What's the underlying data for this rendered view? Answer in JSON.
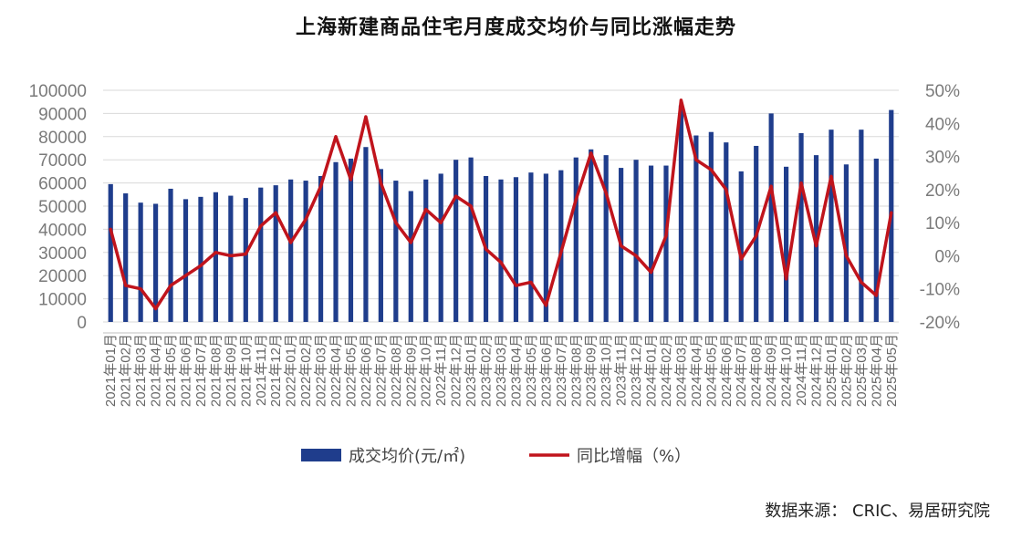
{
  "title": "上海新建商品住宅月度成交均价与同比涨幅走势",
  "source": "数据来源： CRIC、易居研究院",
  "chart_data": {
    "type": "bar",
    "categories": [
      "2021年01月",
      "2021年02月",
      "2021年03月",
      "2021年04月",
      "2021年05月",
      "2021年06月",
      "2021年07月",
      "2021年08月",
      "2021年09月",
      "2021年10月",
      "2021年11月",
      "2021年12月",
      "2022年01月",
      "2022年02月",
      "2022年03月",
      "2022年04月",
      "2022年05月",
      "2022年06月",
      "2022年07月",
      "2022年08月",
      "2022年09月",
      "2022年10月",
      "2022年11月",
      "2022年12月",
      "2023年01月",
      "2023年02月",
      "2023年03月",
      "2023年04月",
      "2023年05月",
      "2023年06月",
      "2023年07月",
      "2023年08月",
      "2023年09月",
      "2023年10月",
      "2023年11月",
      "2023年12月",
      "2024年01月",
      "2024年02月",
      "2024年03月",
      "2024年04月",
      "2024年05月",
      "2024年06月",
      "2024年07月",
      "2024年08月",
      "2024年09月",
      "2024年10月",
      "2024年11月",
      "2024年12月",
      "2025年01月",
      "2025年02月",
      "2025年03月",
      "2025年04月",
      "2025年05月"
    ],
    "series": [
      {
        "name": "成交均价(元/㎡)",
        "type": "bar",
        "axis": "left",
        "color": "#1f3d8c",
        "values": [
          59500,
          55500,
          51500,
          51000,
          57500,
          53000,
          54000,
          56000,
          54500,
          53500,
          58000,
          59000,
          61500,
          61000,
          63000,
          69000,
          70500,
          75500,
          66000,
          61000,
          56500,
          61500,
          64000,
          70000,
          71000,
          63000,
          61500,
          62500,
          64500,
          64000,
          65500,
          71000,
          74500,
          72000,
          66500,
          70000,
          67500,
          67500,
          93500,
          80500,
          82000,
          77500,
          65000,
          76000,
          90000,
          67000,
          81500,
          72000,
          83000,
          68000,
          83000,
          70500,
          91500
        ]
      },
      {
        "name": "同比增幅（%）",
        "type": "line",
        "axis": "right",
        "color": "#c0141c",
        "values": [
          8,
          -9,
          -10,
          -16,
          -9,
          -6,
          -3,
          1,
          0,
          0.5,
          9,
          13,
          4,
          11,
          21,
          36,
          23,
          42,
          22,
          10,
          4,
          14,
          10,
          18,
          15,
          2,
          -2,
          -9,
          -8,
          -15,
          1,
          17,
          31,
          19,
          3,
          0,
          -5,
          6,
          47,
          29,
          26,
          20,
          -1,
          6,
          21,
          -7,
          22,
          3,
          24,
          0,
          -8,
          -12,
          13
        ]
      }
    ],
    "y_left": {
      "min": 0,
      "max": 100000,
      "step": 10000,
      "ticks": [
        "0",
        "10000",
        "20000",
        "30000",
        "40000",
        "50000",
        "60000",
        "70000",
        "80000",
        "90000",
        "100000"
      ]
    },
    "y_right": {
      "min": -20,
      "max": 50,
      "step": 10,
      "ticks": [
        "-20%",
        "-10%",
        "0%",
        "10%",
        "20%",
        "30%",
        "40%",
        "50%"
      ]
    },
    "grid": true,
    "legend": {
      "placement": "bottom",
      "items": [
        "成交均价(元/㎡)",
        "同比增幅（%）"
      ]
    }
  }
}
